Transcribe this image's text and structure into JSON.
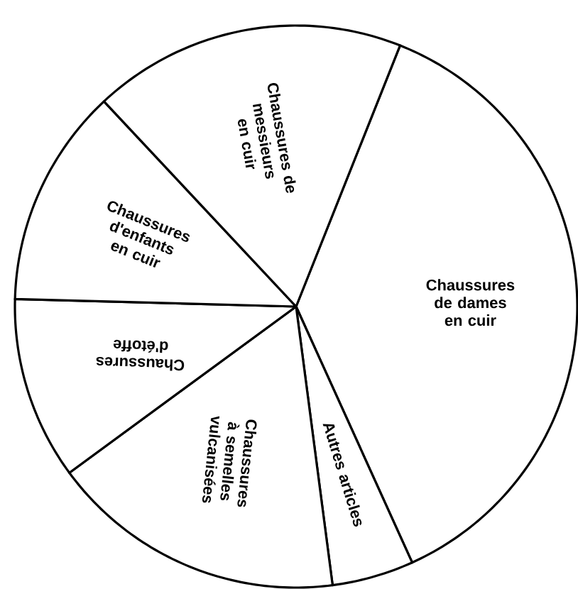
{
  "chart_data": {
    "type": "pie",
    "categories": [
      "Chaussures de dames en cuir",
      "Autres articles",
      "Chaussures à semelles vulcanisées",
      "Chaussures d'étoffe",
      "Chaussures d'enfants en cuir",
      "Chaussures de messieurs en cuir"
    ],
    "values": [
      37.2,
      4.7,
      17.0,
      10.5,
      12.6,
      18.0
    ],
    "colors": [
      "#ffffff",
      "#ffffff",
      "#ffffff",
      "#ffffff",
      "#ffffff",
      "#ffffff"
    ]
  }
}
